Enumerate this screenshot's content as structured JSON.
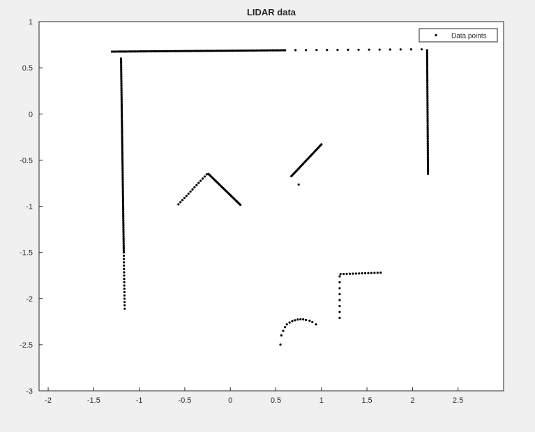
{
  "chart_data": {
    "type": "scatter",
    "title": "LIDAR data",
    "xlabel": "",
    "ylabel": "",
    "xlim": [
      -2.1,
      3.0
    ],
    "ylim": [
      -3,
      1
    ],
    "xticks": [
      -2,
      -1.5,
      -1,
      -0.5,
      0,
      0.5,
      1,
      1.5,
      2,
      2.5
    ],
    "xtick_labels": [
      "-2",
      "-1.5",
      "-1",
      "-0.5",
      "0",
      "0.5",
      "1",
      "1.5",
      "2",
      "2.5"
    ],
    "yticks": [
      -3,
      -2.5,
      -2,
      -1.5,
      -1,
      -0.5,
      0,
      0.5,
      1
    ],
    "ytick_labels": [
      "-3",
      "-2.5",
      "-2",
      "-1.5",
      "-1",
      "-0.5",
      "0",
      "0.5",
      "1"
    ],
    "grid": false,
    "legend_placement": "top-right",
    "marker_color": "#000000",
    "series": [
      {
        "name": "Data points",
        "segments": [
          {
            "from": [
              -1.3,
              0.675
            ],
            "to": [
              0.6,
              0.69
            ],
            "count": 110
          },
          {
            "from": [
              0.6,
              0.69
            ],
            "to": [
              2.1,
              0.7
            ],
            "count": 14
          },
          {
            "from": [
              2.16,
              0.69
            ],
            "to": [
              2.17,
              -0.65
            ],
            "count": 70
          },
          {
            "from": [
              -1.2,
              0.6
            ],
            "to": [
              -1.17,
              -1.5
            ],
            "count": 110
          },
          {
            "from": [
              -1.17,
              -1.5
            ],
            "to": [
              -1.16,
              -2.11
            ],
            "count": 18
          },
          {
            "from": [
              -0.57,
              -0.98
            ],
            "to": [
              -0.26,
              -0.655
            ],
            "count": 15
          },
          {
            "from": [
              -0.24,
              -0.65
            ],
            "to": [
              0.11,
              -0.985
            ],
            "count": 36
          },
          {
            "from": [
              0.67,
              -0.675
            ],
            "to": [
              1.0,
              -0.33
            ],
            "count": 34
          },
          {
            "from": [
              1.21,
              -1.735
            ],
            "to": [
              1.65,
              -1.72
            ],
            "count": 14
          },
          {
            "from": [
              1.2,
              -1.76
            ],
            "to": [
              1.2,
              -2.21
            ],
            "count": 8
          }
        ],
        "points": [
          [
            0.75,
            -0.765
          ],
          [
            0.55,
            -2.5
          ],
          [
            0.56,
            -2.4
          ],
          [
            0.58,
            -2.35
          ],
          [
            0.6,
            -2.31
          ],
          [
            0.62,
            -2.28
          ],
          [
            0.65,
            -2.26
          ],
          [
            0.68,
            -2.245
          ],
          [
            0.71,
            -2.235
          ],
          [
            0.74,
            -2.228
          ],
          [
            0.77,
            -2.225
          ],
          [
            0.8,
            -2.226
          ],
          [
            0.83,
            -2.232
          ],
          [
            0.87,
            -2.24
          ],
          [
            0.9,
            -2.255
          ],
          [
            0.94,
            -2.28
          ]
        ]
      }
    ]
  }
}
